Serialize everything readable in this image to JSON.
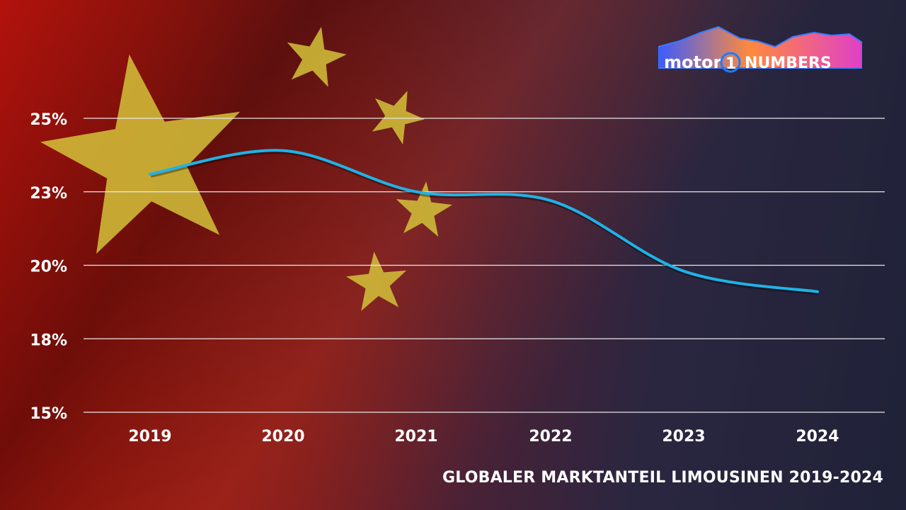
{
  "logo": {
    "text_left": "motor",
    "text_number": "1",
    "text_right": "NUMBERS"
  },
  "footer": {
    "caption": "GLOBALER MARKTANTEIL LIMOUSINEN 2019-2024"
  },
  "colors": {
    "line": "#1fb3e6",
    "grid": "#e8e8e8",
    "star": "#d4c23a"
  },
  "chart_data": {
    "type": "line",
    "title": "GLOBALER MARKTANTEIL LIMOUSINEN 2019-2024",
    "xlabel": "",
    "ylabel": "",
    "categories": [
      "2019",
      "2020",
      "2021",
      "2022",
      "2023",
      "2024"
    ],
    "series": [
      {
        "name": "Marktanteil Limousinen",
        "values": [
          23.1,
          23.9,
          22.5,
          22.2,
          19.8,
          19.1
        ]
      }
    ],
    "yticks": [
      25,
      22.5,
      20,
      17.5,
      15
    ],
    "ytick_labels": [
      "25%",
      "23%",
      "20%",
      "18%",
      "15%"
    ],
    "ylim": [
      15,
      25
    ],
    "grid": true,
    "legend": "none"
  }
}
